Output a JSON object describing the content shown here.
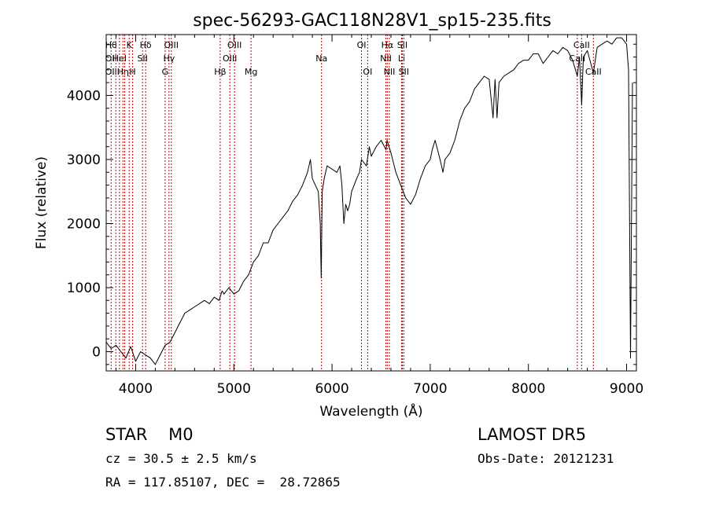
{
  "chart_data": {
    "type": "line",
    "title": "spec-56293-GAC118N28V1_sp15-235.fits",
    "xlabel": "Wavelength (Å)",
    "ylabel": "Flux (relative)",
    "xlim": [
      3700,
      9100
    ],
    "ylim": [
      -300,
      4950
    ],
    "xticks": [
      4000,
      5000,
      6000,
      7000,
      8000,
      9000
    ],
    "yticks": [
      0,
      1000,
      2000,
      3000,
      4000
    ],
    "line_color": "#000000",
    "marker_color": "#c00000",
    "series": [
      {
        "x": [
          3700,
          3750,
          3800,
          3850,
          3900,
          3950,
          4000,
          4050,
          4100,
          4150,
          4200,
          4250,
          4300,
          4350,
          4400,
          4450,
          4500,
          4550,
          4600,
          4650,
          4700,
          4750,
          4800,
          4850,
          4880,
          4900,
          4950,
          5000,
          5050,
          5100,
          5150,
          5200,
          5250,
          5300,
          5350,
          5400,
          5450,
          5500,
          5550,
          5600,
          5650,
          5700,
          5750,
          5780,
          5800,
          5830,
          5860,
          5880,
          5890,
          5900,
          5920,
          5950,
          6000,
          6050,
          6080,
          6100,
          6120,
          6140,
          6160,
          6180,
          6200,
          6250,
          6280,
          6300,
          6350,
          6380,
          6400,
          6450,
          6500,
          6550,
          6560,
          6580,
          6600,
          6650,
          6700,
          6750,
          6800,
          6850,
          6900,
          6950,
          7000,
          7020,
          7050,
          7100,
          7130,
          7150,
          7200,
          7250,
          7300,
          7350,
          7400,
          7450,
          7500,
          7550,
          7600,
          7640,
          7660,
          7680,
          7700,
          7750,
          7800,
          7850,
          7900,
          7950,
          8000,
          8050,
          8100,
          8150,
          8200,
          8250,
          8300,
          8350,
          8400,
          8450,
          8498,
          8520,
          8542,
          8560,
          8600,
          8662,
          8700,
          8750,
          8800,
          8850,
          8900,
          8950,
          9000,
          9020,
          9040,
          9060
        ],
        "y": [
          150,
          50,
          100,
          0,
          -100,
          80,
          -150,
          0,
          -50,
          -100,
          -200,
          -50,
          100,
          150,
          300,
          450,
          600,
          650,
          700,
          750,
          800,
          750,
          850,
          800,
          950,
          900,
          1000,
          900,
          950,
          1100,
          1200,
          1400,
          1500,
          1700,
          1700,
          1900,
          2000,
          2100,
          2200,
          2350,
          2450,
          2600,
          2800,
          3000,
          2700,
          2600,
          2500,
          2000,
          1150,
          2500,
          2700,
          2900,
          2850,
          2800,
          2900,
          2600,
          2000,
          2300,
          2200,
          2300,
          2500,
          2700,
          2800,
          3000,
          2900,
          3200,
          3050,
          3200,
          3300,
          3150,
          3300,
          3200,
          3100,
          2800,
          2600,
          2400,
          2300,
          2450,
          2700,
          2900,
          3000,
          3150,
          3300,
          3000,
          2800,
          3000,
          3100,
          3300,
          3600,
          3800,
          3900,
          4100,
          4200,
          4300,
          4250,
          3650,
          4250,
          3650,
          4200,
          4300,
          4350,
          4400,
          4500,
          4550,
          4550,
          4650,
          4650,
          4500,
          4600,
          4700,
          4650,
          4750,
          4700,
          4550,
          4300,
          4600,
          3850,
          4600,
          4700,
          4350,
          4750,
          4800,
          4850,
          4800,
          4900,
          4900,
          4800,
          4400,
          -100,
          4200
        ]
      }
    ],
    "lines": [
      {
        "x": 3750,
        "labels": [
          {
            "text": "Hθ",
            "row": 0
          },
          {
            "text": "OII",
            "row": 1
          },
          {
            "text": "OII",
            "row": 2
          }
        ]
      },
      {
        "x": 3798,
        "labels": []
      },
      {
        "x": 3835,
        "labels": [
          {
            "text": "HeI",
            "row": 1
          }
        ]
      },
      {
        "x": 3870,
        "labels": [
          {
            "text": "Hη",
            "row": 2
          }
        ]
      },
      {
        "x": 3889,
        "labels": []
      },
      {
        "x": 3934,
        "labels": [
          {
            "text": "K",
            "row": 0
          }
        ]
      },
      {
        "x": 3969,
        "labels": [
          {
            "text": "H",
            "row": 2
          }
        ]
      },
      {
        "x": 4070,
        "labels": [
          {
            "text": "SII",
            "row": 1
          }
        ]
      },
      {
        "x": 4102,
        "labels": [
          {
            "text": "Hδ",
            "row": 0
          }
        ]
      },
      {
        "x": 4300,
        "labels": [
          {
            "text": "G",
            "row": 2
          }
        ]
      },
      {
        "x": 4340,
        "labels": [
          {
            "text": "Hγ",
            "row": 1
          }
        ]
      },
      {
        "x": 4363,
        "labels": [
          {
            "text": "OIII",
            "row": 0
          }
        ]
      },
      {
        "x": 4861,
        "labels": [
          {
            "text": "Hβ",
            "row": 2
          }
        ]
      },
      {
        "x": 4959,
        "labels": [
          {
            "text": "OIII",
            "row": 1
          }
        ]
      },
      {
        "x": 5007,
        "labels": [
          {
            "text": "OIII",
            "row": 0
          }
        ]
      },
      {
        "x": 5175,
        "labels": [
          {
            "text": "Mg",
            "row": 2
          }
        ]
      },
      {
        "x": 5893,
        "labels": [
          {
            "text": "Na",
            "row": 1
          }
        ]
      },
      {
        "x": 6300,
        "labels": [
          {
            "text": "OI",
            "row": 0
          }
        ]
      },
      {
        "x": 6363,
        "labels": [
          {
            "text": "OI",
            "row": 2
          }
        ]
      },
      {
        "x": 6548,
        "labels": [
          {
            "text": "NII",
            "row": 1
          }
        ]
      },
      {
        "x": 6563,
        "labels": [
          {
            "text": "Hα",
            "row": 0
          }
        ]
      },
      {
        "x": 6584,
        "labels": [
          {
            "text": "NII",
            "row": 2
          }
        ]
      },
      {
        "x": 6708,
        "labels": [
          {
            "text": "Li",
            "row": 1
          }
        ]
      },
      {
        "x": 6716,
        "labels": [
          {
            "text": "SII",
            "row": 0
          }
        ]
      },
      {
        "x": 6731,
        "labels": [
          {
            "text": "SII",
            "row": 2
          }
        ]
      },
      {
        "x": 8498,
        "labels": [
          {
            "text": "CaII",
            "row": 1
          }
        ]
      },
      {
        "x": 8542,
        "labels": [
          {
            "text": "CaII",
            "row": 0
          }
        ]
      },
      {
        "x": 8662,
        "labels": [
          {
            "text": "CaII",
            "row": 2
          }
        ]
      }
    ]
  },
  "info": {
    "class_label": "STAR    M0",
    "cz": "cz = 30.5 ± 2.5 km/s",
    "coords": "RA = 117.85107, DEC =  28.72865",
    "survey": "LAMOST DR5",
    "obs_date": "Obs-Date: 20121231"
  }
}
